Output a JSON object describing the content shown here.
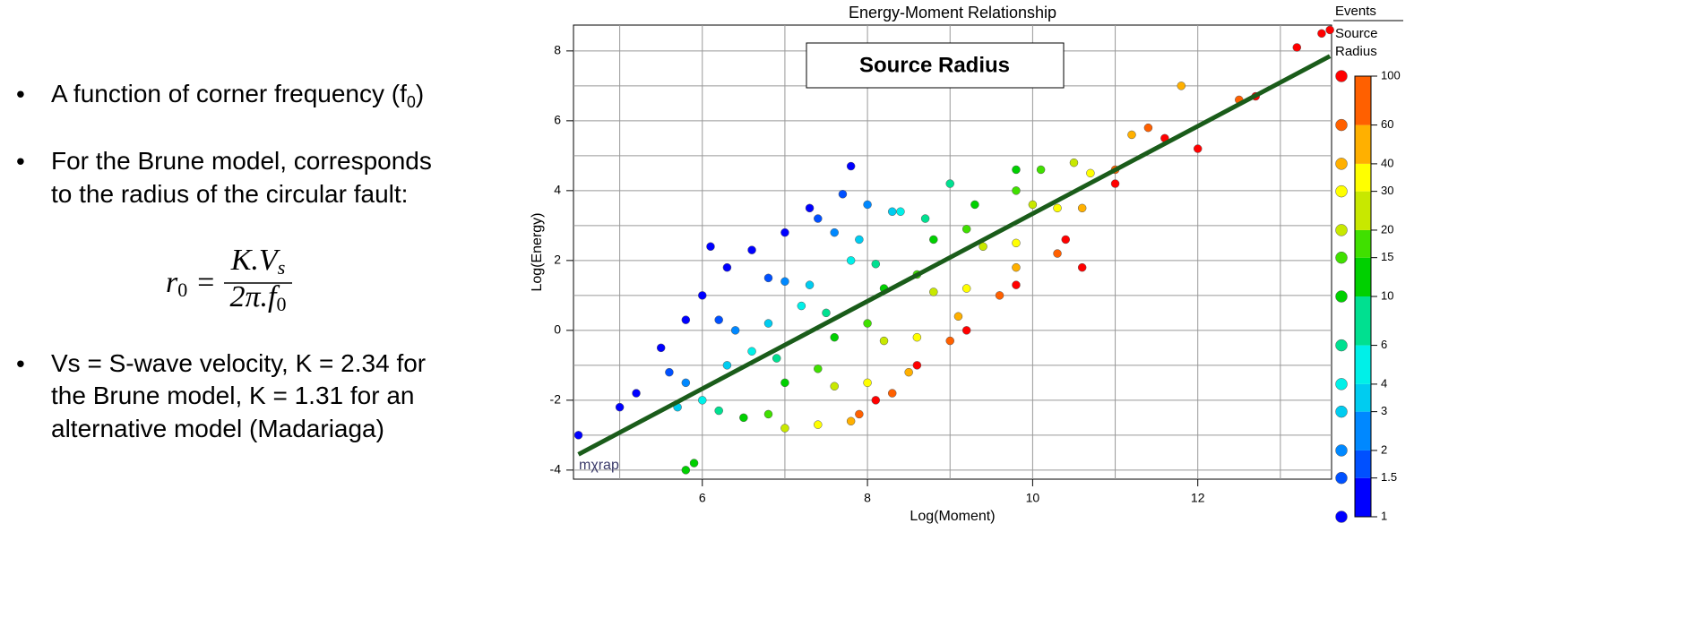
{
  "slide": {
    "bullets": [
      {
        "lines": [
          [
            "A function of corner frequency (f",
            "0",
            ")"
          ]
        ]
      },
      {
        "lines": [
          [
            "For the Brune model, corresponds"
          ],
          [
            "to the radius of the circular fault:"
          ]
        ]
      },
      {
        "lines": [
          [
            "Vs = S-wave velocity, K = 2.34 for"
          ],
          [
            "the Brune model, K = 1.31 for an"
          ],
          [
            "alternative model (Madariaga)"
          ]
        ]
      }
    ],
    "formula": {
      "lhs": "r",
      "lhs_sub": "0",
      "eq": "=",
      "num": "K.V",
      "num_sub": "s",
      "den": "2π.f",
      "den_sub": "0"
    }
  },
  "chart_data": {
    "type": "scatter",
    "title": "Energy-Moment Relationship",
    "x_label": "Log(Moment)",
    "y_label": "Log(Energy)",
    "annotation": "Source Radius",
    "watermark": "mχrap",
    "xlim": [
      4.44,
      13.62
    ],
    "ylim": [
      -4.26,
      8.74
    ],
    "xticks": [
      6,
      8,
      10,
      12
    ],
    "yticks": [
      -4,
      -2,
      0,
      2,
      4,
      6,
      8
    ],
    "xgrid": [
      5,
      6,
      7,
      8,
      9,
      10,
      11,
      12,
      13
    ],
    "ygrid": [
      -4,
      -3,
      -2,
      -1,
      0,
      1,
      2,
      3,
      4,
      5,
      6,
      7,
      8
    ],
    "grid": true,
    "series": [
      {
        "x": [
          5.2,
          5.5,
          5.8,
          6.0,
          6.3,
          6.6,
          7.0,
          7.3,
          7.8,
          6.1,
          5.0,
          4.5,
          5.6,
          6.2,
          6.8,
          7.4,
          7.7,
          5.8,
          6.4,
          7.0,
          7.6,
          8.0,
          5.7,
          6.3,
          6.8,
          7.3,
          7.9,
          8.3,
          6.0,
          6.6,
          7.2,
          7.8,
          8.4,
          6.2,
          6.9,
          7.5,
          8.1,
          8.7,
          9.0,
          6.5,
          7.0,
          7.6,
          8.2,
          8.8,
          9.3,
          9.8,
          5.8,
          5.9,
          6.8,
          7.4,
          8.0,
          8.6,
          9.2,
          9.8,
          10.1,
          7.0,
          7.6,
          8.2,
          8.8,
          9.4,
          10.0,
          10.5,
          7.4,
          8.0,
          8.6,
          9.2,
          9.8,
          10.3,
          10.7,
          7.8,
          8.5,
          9.1,
          9.8,
          10.6,
          11.2,
          11.8,
          7.9,
          8.3,
          9.0,
          9.6,
          10.3,
          11.0,
          12.5,
          11.4,
          8.1,
          8.6,
          9.2,
          9.8,
          10.4,
          11.0,
          11.6,
          12.0,
          12.7,
          13.2,
          13.5,
          13.6,
          10.6
        ],
        "y": [
          -1.8,
          -0.5,
          0.3,
          1.0,
          1.8,
          2.3,
          2.8,
          3.5,
          4.7,
          2.4,
          -2.2,
          -3.0,
          -1.2,
          0.3,
          1.5,
          3.2,
          3.9,
          -1.5,
          0.0,
          1.4,
          2.8,
          3.6,
          -2.2,
          -1.0,
          0.2,
          1.3,
          2.6,
          3.4,
          -2.0,
          -0.6,
          0.7,
          2.0,
          3.4,
          -2.3,
          -0.8,
          0.5,
          1.9,
          3.2,
          4.2,
          -2.5,
          -1.5,
          -0.2,
          1.2,
          2.6,
          3.6,
          4.6,
          -4.0,
          -3.8,
          -2.4,
          -1.1,
          0.2,
          1.6,
          2.9,
          4.0,
          4.6,
          -2.8,
          -1.6,
          -0.3,
          1.1,
          2.4,
          3.6,
          4.8,
          -2.7,
          -1.5,
          -0.2,
          1.2,
          2.5,
          3.5,
          4.5,
          -2.6,
          -1.2,
          0.4,
          1.8,
          3.5,
          5.6,
          7.0,
          -2.4,
          -1.8,
          -0.3,
          1.0,
          2.2,
          4.6,
          6.6,
          5.8,
          -2.0,
          -1.0,
          0.0,
          1.3,
          2.6,
          4.2,
          5.5,
          5.2,
          6.7,
          8.1,
          8.5,
          8.6,
          1.8
        ],
        "radius": [
          1,
          1,
          1,
          1,
          1,
          1,
          1,
          1,
          1,
          1,
          1,
          1,
          1.5,
          1.5,
          1.5,
          1.5,
          1.5,
          2,
          2,
          2,
          2,
          2,
          3,
          3,
          3,
          3,
          3,
          3,
          4,
          4,
          4,
          4,
          4,
          6,
          6,
          6,
          6,
          6,
          6,
          10,
          10,
          10,
          10,
          10,
          10,
          10,
          10,
          10,
          15,
          15,
          15,
          15,
          15,
          15,
          15,
          20,
          20,
          20,
          20,
          20,
          20,
          20,
          30,
          30,
          30,
          30,
          30,
          30,
          30,
          40,
          40,
          40,
          40,
          40,
          40,
          40,
          60,
          60,
          60,
          60,
          60,
          60,
          60,
          60,
          100,
          100,
          100,
          100,
          100,
          100,
          100,
          100,
          100,
          100,
          100,
          100,
          100
        ]
      }
    ],
    "fit_line": {
      "x": [
        4.5,
        13.6
      ],
      "y": [
        -3.55,
        7.85
      ],
      "color": "#1a5c1a"
    },
    "legend": {
      "header": "Events",
      "title": [
        "Source",
        "Radius"
      ]
    },
    "colorbar": {
      "log": true,
      "lim": [
        1,
        100
      ],
      "ticks": [
        1,
        1.5,
        2,
        3,
        4,
        6,
        10,
        15,
        20,
        30,
        40,
        60,
        100
      ],
      "colors": [
        "#0000ff",
        "#0050ff",
        "#0088ff",
        "#00ccf0",
        "#00f0e8",
        "#00e090",
        "#00d000",
        "#40e000",
        "#c8e800",
        "#ffff00",
        "#ffb000",
        "#ff6000",
        "#ff0000"
      ]
    }
  }
}
